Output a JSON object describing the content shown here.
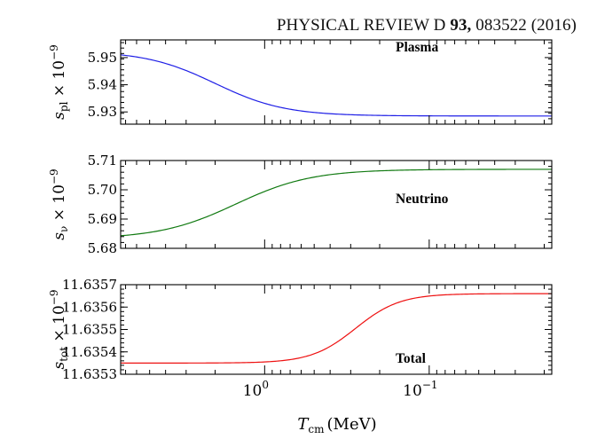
{
  "header": {
    "journal": "PHYSICAL REVIEW D",
    "volume": "93,",
    "article": "083522 (2016)"
  },
  "chart_data": [
    {
      "type": "line",
      "panel_label": "Plasma",
      "ylabel": {
        "symbol": "s",
        "subscript": "pl",
        "rest": " × 10",
        "sup": "−9"
      },
      "yticks": [
        "5.95",
        "5.94",
        "5.93"
      ],
      "ytick_values": [
        5.95,
        5.94,
        5.93
      ],
      "ylim": [
        5.9255,
        5.9565
      ],
      "xscale": "log",
      "xlim": [
        7.5,
        0.018
      ],
      "series": [
        {
          "color": "#1f1fe6",
          "T_center": 2.0,
          "width": 0.55,
          "y_high": 5.9525,
          "y_low": 5.9285
        }
      ]
    },
    {
      "type": "line",
      "panel_label": "Neutrino",
      "ylabel": {
        "symbol": "s",
        "subscript": "ν",
        "rest": " × 10",
        "sup": "−9"
      },
      "yticks": [
        "5.71",
        "5.70",
        "5.69",
        "5.68"
      ],
      "ytick_values": [
        5.71,
        5.7,
        5.69,
        5.68
      ],
      "ylim": [
        5.68,
        5.71
      ],
      "xscale": "log",
      "xlim": [
        7.5,
        0.018
      ],
      "series": [
        {
          "color": "#117a11",
          "T_center": 1.5,
          "width": 0.6,
          "y_high": 5.6832,
          "y_low": 5.707
        }
      ]
    },
    {
      "type": "line",
      "panel_label": "Total",
      "ylabel": {
        "symbol": "s",
        "subscript": "tot",
        "rest": " × 10",
        "sup": "−9"
      },
      "yticks": [
        "11.6357",
        "11.6356",
        "11.6355",
        "11.6354",
        "11.6353"
      ],
      "ytick_values": [
        11.6357,
        11.6356,
        11.6355,
        11.6354,
        11.6353
      ],
      "ylim": [
        11.6353,
        11.6357
      ],
      "xscale": "log",
      "xlim": [
        7.5,
        0.018
      ],
      "series": [
        {
          "color": "#ee1111",
          "T_center": 0.28,
          "width": 0.35,
          "y_high": 11.63535,
          "y_low": 11.63566
        }
      ]
    }
  ],
  "xaxis": {
    "label_symbol": "T",
    "label_subscript": "cm",
    "label_unit": "(MeV)",
    "major_ticks": [
      {
        "value": 1.0,
        "base": "10",
        "exp": "0"
      },
      {
        "value": 0.1,
        "base": "10",
        "exp": "−1"
      }
    ],
    "minor_ticks": [
      7,
      6,
      5,
      4,
      3,
      2,
      0.9,
      0.8,
      0.7,
      0.6,
      0.5,
      0.4,
      0.3,
      0.2,
      0.09,
      0.08,
      0.07,
      0.06,
      0.05,
      0.04,
      0.03,
      0.02
    ]
  }
}
